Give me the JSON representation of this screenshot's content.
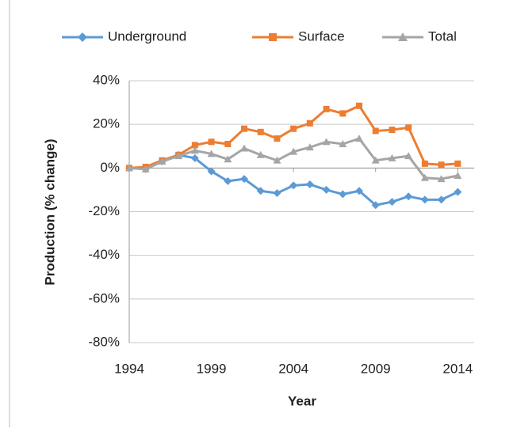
{
  "chart_data": {
    "type": "line",
    "x": [
      1994,
      1995,
      1996,
      1997,
      1998,
      1999,
      2000,
      2001,
      2002,
      2003,
      2004,
      2005,
      2006,
      2007,
      2008,
      2009,
      2010,
      2011,
      2012,
      2013,
      2014
    ],
    "series": [
      {
        "name": "Underground",
        "color": "#5b9bd5",
        "marker": "diamond",
        "values": [
          0,
          -0.5,
          3,
          6,
          4.5,
          -1.5,
          -6,
          -5,
          -10.5,
          -11.5,
          -8,
          -7.5,
          -10,
          -12,
          -10.5,
          -17,
          -15.5,
          -13,
          -14.5,
          -14.5,
          -11
        ]
      },
      {
        "name": "Surface",
        "color": "#ed7d31",
        "marker": "square",
        "values": [
          0,
          0.5,
          3.5,
          6,
          10.5,
          12,
          11,
          18,
          16.5,
          13.5,
          18,
          20.5,
          27,
          25,
          28.5,
          17,
          17.5,
          18.5,
          2,
          1.5,
          2
        ]
      },
      {
        "name": "Total",
        "color": "#a5a5a5",
        "marker": "triangle",
        "values": [
          0,
          -0.5,
          3,
          5.5,
          8,
          6.5,
          4,
          9,
          6,
          3.5,
          7.5,
          9.5,
          12,
          11,
          13.5,
          3.5,
          4.5,
          5.5,
          -4.5,
          -5,
          -3.5
        ]
      }
    ],
    "x_label": "Year",
    "y_label": "Production (% change)",
    "xlim": [
      1994,
      2015
    ],
    "xticks": [
      1994,
      1999,
      2004,
      2009,
      2014
    ],
    "ylim": [
      -80,
      40
    ],
    "yticks": [
      {
        "value": -80,
        "label": "-80%"
      },
      {
        "value": -60,
        "label": "-60%"
      },
      {
        "value": -40,
        "label": "-40%"
      },
      {
        "value": -20,
        "label": "-20%"
      },
      {
        "value": 0,
        "label": "0%"
      },
      {
        "value": 20,
        "label": "20%"
      },
      {
        "value": 40,
        "label": "40%"
      }
    ],
    "grid": true,
    "legend": "top"
  }
}
